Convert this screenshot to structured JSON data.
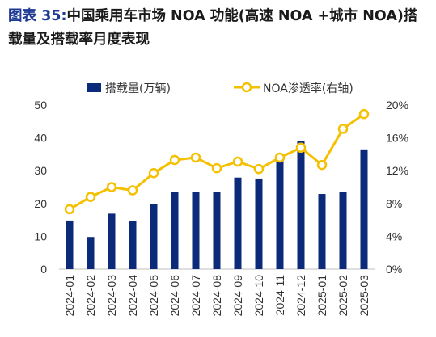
{
  "title": {
    "prefix": "图表 35:",
    "text": "中国乘用车市场 NOA 功能(高速 NOA +城市 NOA)搭载量及搭载率月度表现"
  },
  "colors": {
    "bar": "#0b2a7a",
    "line": "#f5c000",
    "marker_fill": "#ffffff"
  },
  "chart_data": {
    "type": "bar",
    "categories": [
      "2024-01",
      "2024-02",
      "2024-03",
      "2024-04",
      "2024-05",
      "2024-06",
      "2024-07",
      "2024-08",
      "2024-09",
      "2024-10",
      "2024-11",
      "2024-12",
      "2025-01",
      "2025-02",
      "2025-03"
    ],
    "series": [
      {
        "name": "搭载量(万辆)",
        "type": "bar",
        "axis": "left",
        "values": [
          14.8,
          9.8,
          16.9,
          14.7,
          19.9,
          23.6,
          23.4,
          23.4,
          27.9,
          27.6,
          33.0,
          39.0,
          22.9,
          23.6,
          36.5
        ]
      },
      {
        "name": "NOA渗透率(右轴)",
        "type": "line",
        "axis": "right",
        "values": [
          7.3,
          8.8,
          10.0,
          9.6,
          11.7,
          13.3,
          13.6,
          12.3,
          13.1,
          12.2,
          13.6,
          14.8,
          12.7,
          17.1,
          18.9
        ]
      }
    ],
    "y_left": {
      "min": 0,
      "max": 50,
      "ticks": [
        0,
        10,
        20,
        30,
        40,
        50
      ],
      "tick_labels": [
        "0",
        "10",
        "20",
        "30",
        "40",
        "50"
      ]
    },
    "y_right": {
      "min": 0,
      "max": 20,
      "ticks": [
        0,
        4,
        8,
        12,
        16,
        20
      ],
      "tick_labels": [
        "0%",
        "4%",
        "8%",
        "12%",
        "16%",
        "20%"
      ]
    },
    "grid": false,
    "legend": "top"
  }
}
